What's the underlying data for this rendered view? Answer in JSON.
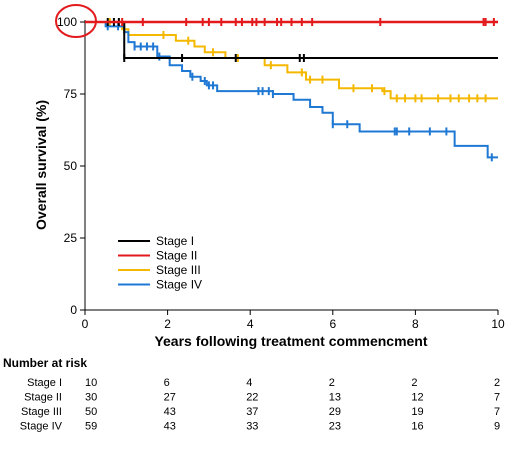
{
  "chart_data": {
    "type": "line",
    "title": "",
    "xlabel": "Years following treatment commencment",
    "ylabel": "Overall survival (%)",
    "xlim": [
      0,
      10
    ],
    "ylim": [
      0,
      100
    ],
    "xticks": [
      0,
      2,
      4,
      6,
      8,
      10
    ],
    "yticks": [
      0,
      25,
      50,
      75,
      100
    ],
    "grid": false,
    "legend_position": "lower-left",
    "series": [
      {
        "name": "Stage I",
        "color": "#000000",
        "steps": [
          [
            0,
            100
          ],
          [
            0.95,
            87.5
          ],
          [
            10,
            87.5
          ]
        ],
        "censor_x": [
          0.55,
          0.7,
          0.82,
          0.95,
          2.35,
          3.65,
          5.2,
          5.3
        ]
      },
      {
        "name": "Stage II",
        "color": "#e31a1c",
        "steps": [
          [
            0,
            100
          ],
          [
            10,
            100
          ]
        ],
        "censor_x": [
          0.9,
          1.4,
          2.45,
          2.85,
          3.0,
          3.3,
          3.65,
          3.8,
          4.05,
          4.15,
          4.35,
          4.65,
          4.75,
          5.0,
          5.25,
          5.5,
          7.15,
          9.65,
          9.7,
          9.9
        ]
      },
      {
        "name": "Stage III",
        "color": "#f5b800",
        "steps": [
          [
            0,
            100
          ],
          [
            0.9,
            97.5
          ],
          [
            1.05,
            95.5
          ],
          [
            2.2,
            93.5
          ],
          [
            2.65,
            91.5
          ],
          [
            2.9,
            89.5
          ],
          [
            3.4,
            87.5
          ],
          [
            4.35,
            85
          ],
          [
            4.9,
            82.5
          ],
          [
            5.35,
            80
          ],
          [
            6.15,
            77
          ],
          [
            7.2,
            76
          ],
          [
            7.4,
            73.5
          ],
          [
            10,
            73.5
          ]
        ],
        "censor_x": [
          0.6,
          0.95,
          1.9,
          2.5,
          3.1,
          3.7,
          4.5,
          5.25,
          5.45,
          5.75,
          6.5,
          6.95,
          7.25,
          7.55,
          7.75,
          8.0,
          8.15,
          8.55,
          8.85,
          9.05,
          9.3,
          9.5,
          9.7
        ]
      },
      {
        "name": "Stage IV",
        "color": "#1f78d4",
        "steps": [
          [
            0,
            100
          ],
          [
            0.5,
            98.5
          ],
          [
            0.95,
            96.5
          ],
          [
            1.05,
            93
          ],
          [
            1.2,
            91.5
          ],
          [
            1.75,
            88
          ],
          [
            2.05,
            85
          ],
          [
            2.35,
            83
          ],
          [
            2.55,
            81
          ],
          [
            2.8,
            79.5
          ],
          [
            2.95,
            78
          ],
          [
            3.2,
            76
          ],
          [
            4.55,
            75
          ],
          [
            5.05,
            73
          ],
          [
            5.45,
            70.5
          ],
          [
            5.75,
            68.5
          ],
          [
            6.0,
            64.5
          ],
          [
            6.65,
            62
          ],
          [
            8.95,
            57
          ],
          [
            9.75,
            53
          ],
          [
            10,
            53
          ]
        ],
        "censor_x": [
          0.55,
          0.8,
          1.2,
          1.35,
          1.5,
          1.65,
          1.8,
          2.6,
          2.9,
          3.0,
          3.1,
          4.2,
          4.3,
          4.45,
          4.55,
          6.0,
          6.35,
          7.5,
          7.55,
          7.85,
          8.35,
          8.75,
          9.85
        ]
      }
    ],
    "risk_table": {
      "title": "Number at risk",
      "times": [
        0,
        2,
        4,
        6,
        8,
        10
      ],
      "rows": [
        {
          "label": "Stage I",
          "values": [
            10,
            6,
            4,
            2,
            2,
            2
          ]
        },
        {
          "label": "Stage II",
          "values": [
            30,
            27,
            22,
            13,
            12,
            7
          ]
        },
        {
          "label": "Stage III",
          "values": [
            50,
            43,
            37,
            29,
            19,
            7
          ]
        },
        {
          "label": "Stage IV",
          "values": [
            59,
            43,
            33,
            23,
            16,
            9
          ]
        }
      ]
    }
  }
}
